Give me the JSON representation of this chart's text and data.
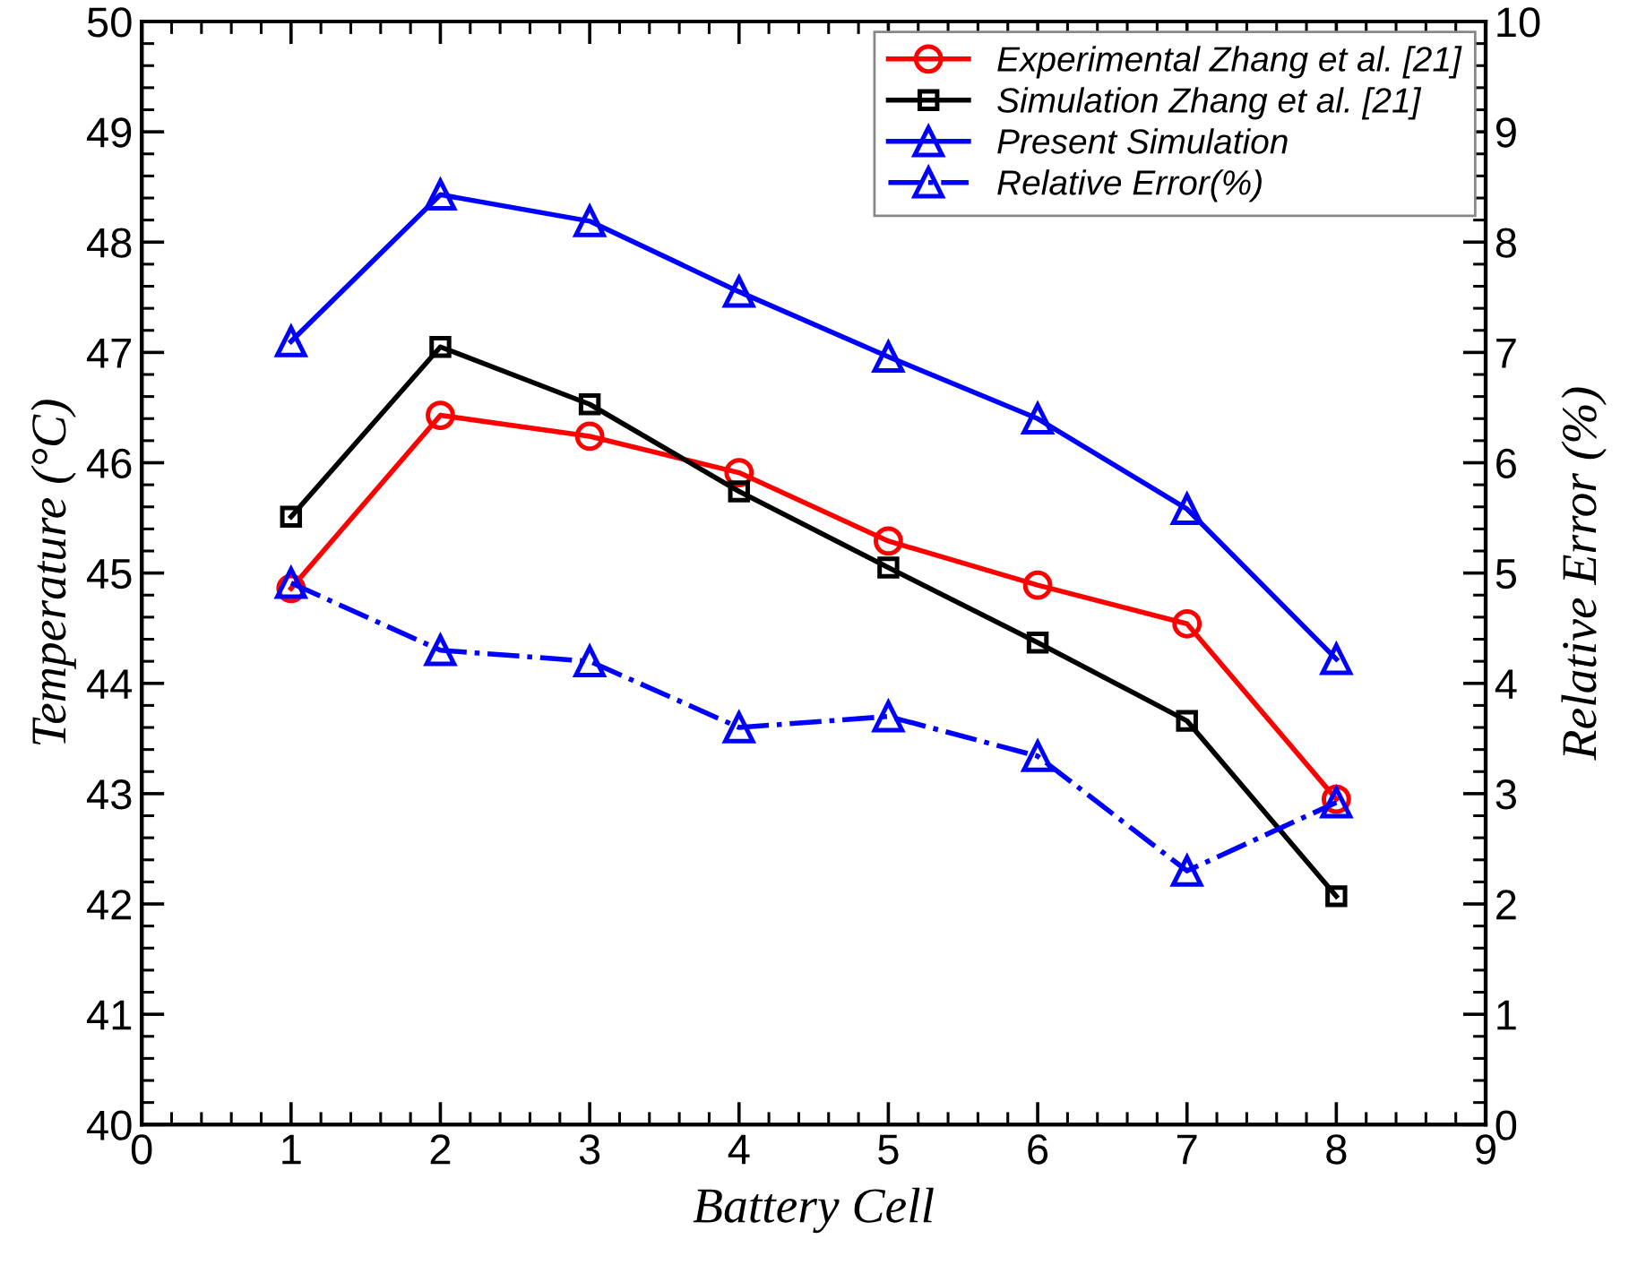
{
  "chart_data": {
    "type": "line",
    "xlabel": "Battery Cell",
    "ylabel": "Temperature (°C)",
    "y2label": "Relative Error (%)",
    "x": [
      1,
      2,
      3,
      4,
      5,
      6,
      7,
      8
    ],
    "series": [
      {
        "name": "Experimental Zhang et al. [21]",
        "color": "#ff0000",
        "marker": "circle",
        "line_style": "solid",
        "values": [
          44.86,
          46.43,
          46.24,
          45.91,
          45.29,
          44.89,
          44.54,
          42.95
        ]
      },
      {
        "name": "Simulation Zhang et al. [21]",
        "color": "#000000",
        "marker": "square",
        "line_style": "solid",
        "values": [
          45.51,
          47.05,
          46.53,
          45.74,
          45.05,
          44.37,
          43.66,
          42.07
        ]
      },
      {
        "name": "Present Simulation",
        "color": "#0000ff",
        "marker": "triangle",
        "line_style": "solid",
        "values": [
          47.1,
          48.43,
          48.19,
          47.55,
          46.96,
          46.4,
          45.58,
          44.22
        ]
      },
      {
        "name": "Relative Error(%)",
        "color": "#0000ff",
        "marker": "triangle",
        "line_style": "dashdot",
        "axis": "y2",
        "values": [
          4.91,
          4.3,
          4.2,
          3.6,
          3.7,
          3.34,
          2.3,
          2.92
        ]
      }
    ],
    "xlim": [
      0,
      9
    ],
    "xticks": [
      0,
      1,
      2,
      3,
      4,
      5,
      6,
      7,
      8,
      9
    ],
    "ylim": [
      40,
      50
    ],
    "yticks": [
      40,
      41,
      42,
      43,
      44,
      45,
      46,
      47,
      48,
      49,
      50
    ],
    "y2lim": [
      0,
      10
    ],
    "y2ticks": [
      0,
      1,
      2,
      3,
      4,
      5,
      6,
      7,
      8,
      9,
      10
    ],
    "grid": false,
    "legend": "top right"
  }
}
